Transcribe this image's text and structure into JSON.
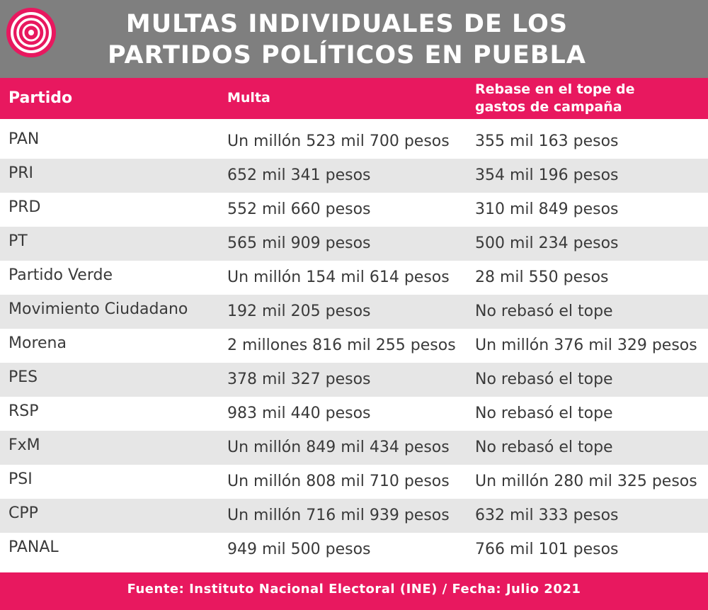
{
  "header": {
    "title_line1": "MULTAS INDIVIDUALES DE LOS",
    "title_line2": "PARTIDOS POLÍTICOS EN PUEBLA",
    "logo_icon": "concentric-circles-logo-icon"
  },
  "colors": {
    "header_bg": "#7f7f7f",
    "accent": "#e8185f",
    "row_shade": "#e6e6e6",
    "text": "#3a3a3a"
  },
  "chart_data": {
    "type": "table",
    "columns": [
      "Partido",
      "Multa",
      "Rebase en el tope de gastos de campaña"
    ],
    "column_lines": {
      "rebase_line1": "Rebase en el tope de",
      "rebase_line2": "gastos de campaña"
    },
    "rows": [
      [
        "PAN",
        "Un millón 523 mil 700 pesos",
        "355 mil 163 pesos"
      ],
      [
        "PRI",
        "652 mil 341 pesos",
        "354 mil 196 pesos"
      ],
      [
        "PRD",
        "552 mil 660 pesos",
        "310 mil 849 pesos"
      ],
      [
        "PT",
        "565 mil 909 pesos",
        "500 mil 234 pesos"
      ],
      [
        "Partido Verde",
        "Un millón 154 mil 614 pesos",
        "28 mil 550 pesos"
      ],
      [
        "Movimiento Ciudadano",
        "192 mil 205 pesos",
        "No rebasó el tope"
      ],
      [
        "Morena",
        "2 millones 816 mil 255 pesos",
        "Un millón 376 mil 329 pesos"
      ],
      [
        "PES",
        "378 mil 327 pesos",
        "No rebasó el tope"
      ],
      [
        "RSP",
        "983 mil 440 pesos",
        "No rebasó el tope"
      ],
      [
        "FxM",
        "Un millón 849 mil 434 pesos",
        "No rebasó el tope"
      ],
      [
        "PSI",
        "Un millón 808 mil 710 pesos",
        "Un millón 280 mil 325 pesos"
      ],
      [
        "CPP",
        "Un millón 716 mil 939 pesos",
        "632 mil 333 pesos"
      ],
      [
        "PANAL",
        "949 mil 500 pesos",
        "766 mil 101 pesos"
      ]
    ]
  },
  "footer": {
    "source": "Fuente: Instituto Nacional Electoral (INE) / Fecha:  Julio 2021"
  }
}
